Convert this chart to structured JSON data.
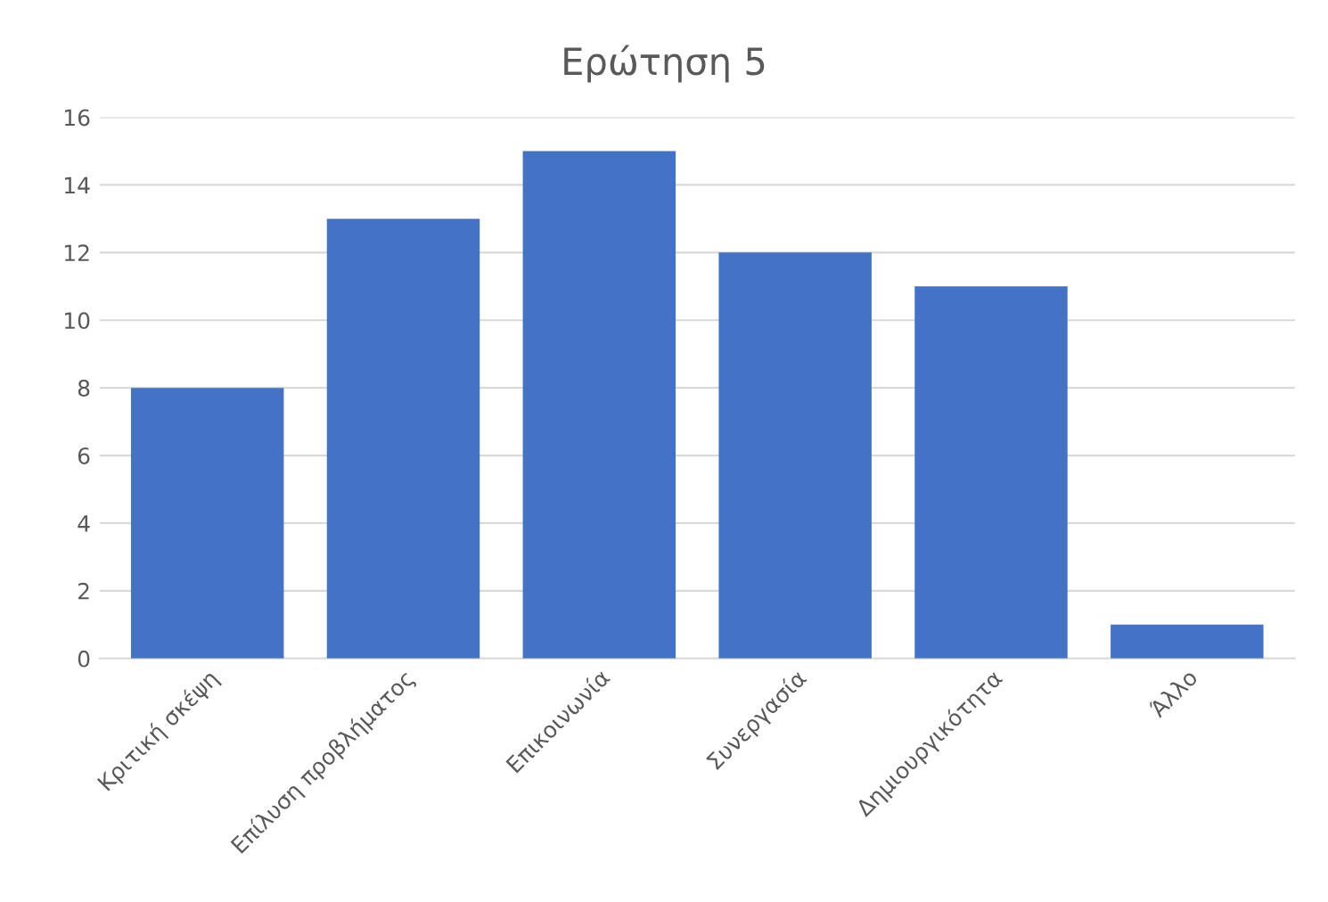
{
  "chart_data": {
    "type": "bar",
    "title": "Ερώτηση 5",
    "categories": [
      "Κριτική σκέψη",
      "Επίλυση προβλήματος",
      "Επικοινωνία",
      "Συνεργασία",
      "Δημιουργικότητα",
      "Άλλο"
    ],
    "values": [
      8,
      13,
      15,
      12,
      11,
      1
    ],
    "color": "#4472c4",
    "ylim": [
      0,
      16
    ],
    "yticks": [
      0,
      2,
      4,
      6,
      8,
      10,
      12,
      14,
      16
    ],
    "grid": "y"
  }
}
